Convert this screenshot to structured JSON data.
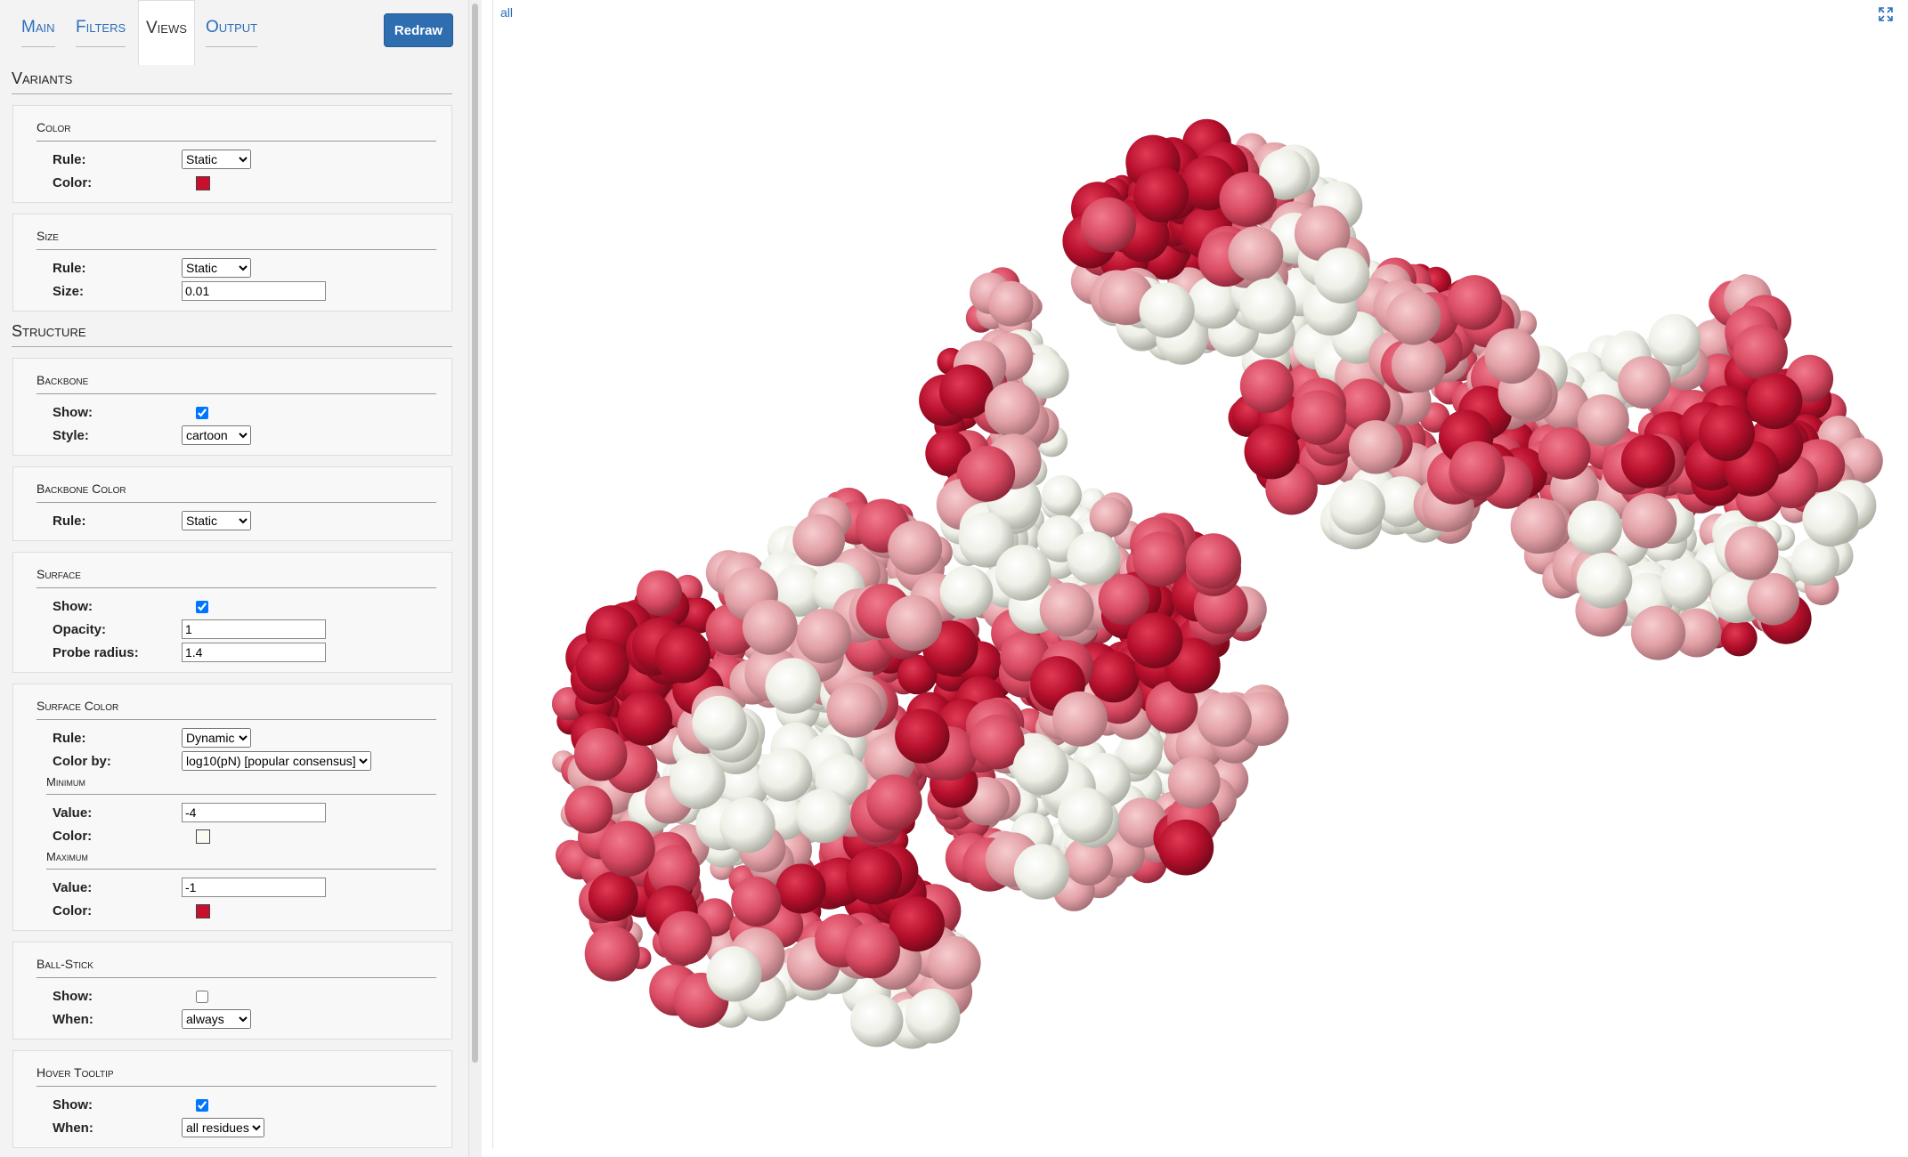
{
  "tabs": [
    "Main",
    "Filters",
    "Views",
    "Output"
  ],
  "redraw": "Redraw",
  "sections": [
    {
      "title": "Variants",
      "groups": [
        {
          "title": "Color",
          "fields": [
            {
              "label": "Rule:",
              "select": "Static"
            },
            {
              "label": "Color:",
              "color": "#c8102e"
            }
          ]
        },
        {
          "title": "Size",
          "fields": [
            {
              "label": "Rule:",
              "select": "Static"
            },
            {
              "label": "Size:",
              "input": "0.01"
            }
          ]
        }
      ]
    },
    {
      "title": "Structure",
      "groups": [
        {
          "title": "Backbone",
          "fields": [
            {
              "label": "Show:",
              "checked": true
            },
            {
              "label": "Style:",
              "select": "cartoon"
            }
          ]
        },
        {
          "title": "Backbone Color",
          "fields": [
            {
              "label": "Rule:",
              "select": "Static"
            }
          ]
        },
        {
          "title": "Surface",
          "fields": [
            {
              "label": "Show:",
              "checked": true
            },
            {
              "label": "Opacity:",
              "input": "1"
            },
            {
              "label": "Probe radius:",
              "input": "1.4"
            }
          ]
        },
        {
          "title": "Surface Color",
          "fields": [
            {
              "label": "Rule:",
              "select": "Dynamic"
            },
            {
              "label": "Color by:",
              "select": "log10(pN) [popular consensus]"
            },
            {
              "heading": "Minimum"
            },
            {
              "label": "Value:",
              "input": "-4"
            },
            {
              "label": "Color:",
              "color": "#fafaf0"
            },
            {
              "heading": "Maximum"
            },
            {
              "label": "Value:",
              "input": "-1"
            },
            {
              "label": "Color:",
              "color": "#c8102e"
            }
          ]
        },
        {
          "title": "Ball-Stick",
          "fields": [
            {
              "label": "Show:",
              "checked": false
            },
            {
              "label": "When:",
              "select": "always"
            }
          ]
        },
        {
          "title": "Hover Tooltip",
          "fields": [
            {
              "label": "Show:",
              "checked": true
            },
            {
              "label": "When:",
              "select": "all residues"
            }
          ]
        }
      ]
    }
  ],
  "viewer": {
    "label": "all"
  }
}
